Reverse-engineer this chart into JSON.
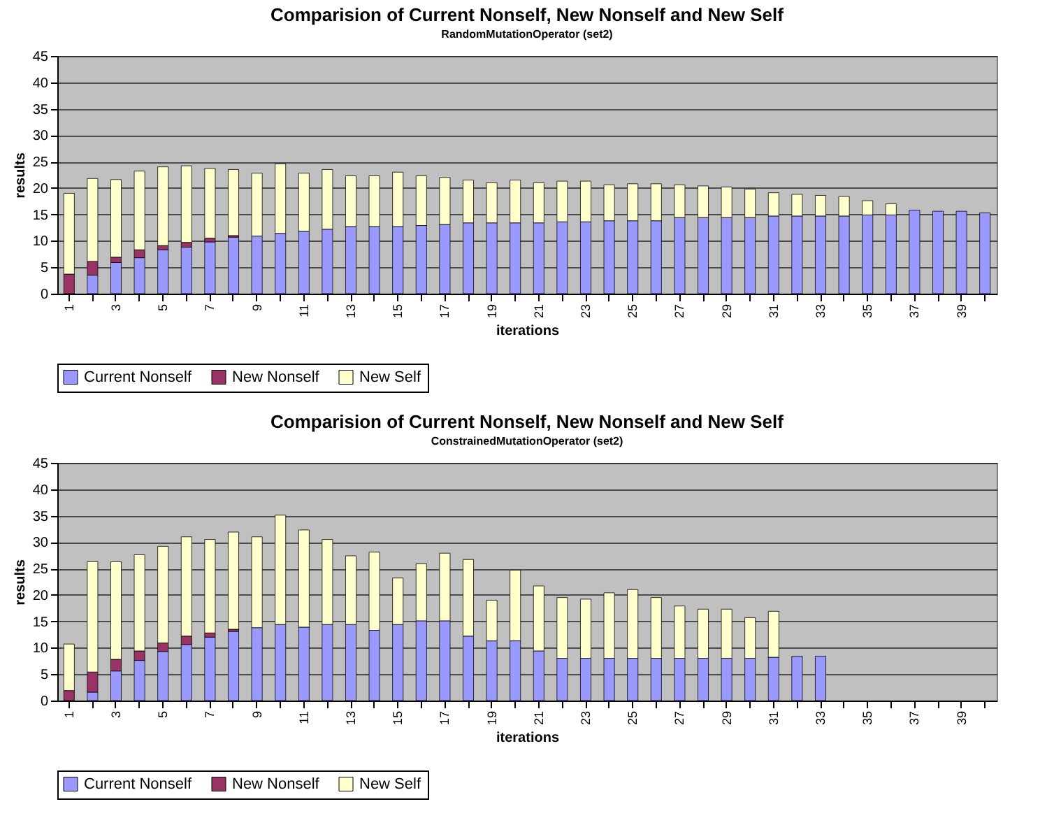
{
  "chart_data": [
    {
      "type": "bar",
      "stacked": true,
      "title": "Comparision of Current Nonself, New Nonself and New Self",
      "subtitle": "RandomMutationOperator (set2)",
      "xlabel": "iterations",
      "ylabel": "results",
      "legend": "bottom",
      "grid": "y",
      "ylim": [
        0,
        45
      ],
      "yticks": [
        0,
        5,
        10,
        15,
        20,
        25,
        30,
        35,
        40,
        45
      ],
      "categories": [
        "1",
        null,
        "3",
        null,
        "5",
        null,
        "7",
        null,
        "9",
        null,
        "11",
        null,
        "13",
        null,
        "15",
        null,
        "17",
        null,
        "19",
        null,
        "21",
        null,
        "23",
        null,
        "25",
        null,
        "27",
        null,
        "29",
        null,
        "31",
        null,
        "33",
        null,
        "35",
        null,
        "37",
        null,
        "39",
        null
      ],
      "series": [
        {
          "name": "Current Nonself",
          "color": "#9999ff",
          "values": [
            null,
            3.5,
            5.9,
            6.8,
            8.3,
            8.8,
            9.8,
            10.7,
            10.9,
            11.4,
            11.8,
            12.2,
            12.7,
            12.7,
            12.7,
            12.9,
            13.1,
            13.4,
            13.4,
            13.4,
            13.4,
            13.6,
            13.6,
            13.8,
            13.8,
            13.8,
            14.4,
            14.4,
            14.4,
            14.4,
            14.7,
            14.7,
            14.7,
            14.7,
            14.9,
            14.9,
            15.8,
            15.6,
            15.6,
            15.3
          ]
        },
        {
          "name": "New Nonself",
          "color": "#993366",
          "values": [
            3.7,
            2.6,
            1.0,
            1.5,
            0.8,
            0.9,
            0.7,
            0.3,
            null,
            null,
            null,
            null,
            null,
            null,
            null,
            null,
            null,
            null,
            null,
            null,
            null,
            null,
            null,
            null,
            null,
            null,
            null,
            null,
            null,
            null,
            null,
            null,
            null,
            null,
            null,
            null,
            null,
            null,
            null,
            null
          ]
        },
        {
          "name": "New Self",
          "color": "#ffffcc",
          "values": [
            15.3,
            15.7,
            14.7,
            14.9,
            14.9,
            14.5,
            13.2,
            12.5,
            11.9,
            13.2,
            11.0,
            11.3,
            9.6,
            9.6,
            10.3,
            9.4,
            8.9,
            8.1,
            7.6,
            8.1,
            7.6,
            7.7,
            7.7,
            6.8,
            7.0,
            7.0,
            6.2,
            6.0,
            5.8,
            5.4,
            4.4,
            4.1,
            3.9,
            3.7,
            2.7,
            2.1,
            null,
            null,
            null,
            null
          ]
        }
      ]
    },
    {
      "type": "bar",
      "stacked": true,
      "title": "Comparision of Current Nonself, New Nonself and New Self",
      "subtitle": "ConstrainedMutationOperator (set2)",
      "xlabel": "iterations",
      "ylabel": "results",
      "legend": "bottom",
      "grid": "y",
      "ylim": [
        0,
        45
      ],
      "yticks": [
        0,
        5,
        10,
        15,
        20,
        25,
        30,
        35,
        40,
        45
      ],
      "categories": [
        "1",
        null,
        "3",
        null,
        "5",
        null,
        "7",
        null,
        "9",
        null,
        "11",
        null,
        "13",
        null,
        "15",
        null,
        "17",
        null,
        "19",
        null,
        "21",
        null,
        "23",
        null,
        "25",
        null,
        "27",
        null,
        "29",
        null,
        "31",
        null,
        "33",
        null,
        "35",
        null,
        "37",
        null,
        "39",
        null
      ],
      "series": [
        {
          "name": "Current Nonself",
          "color": "#9999ff",
          "values": [
            null,
            1.6,
            5.6,
            7.6,
            9.3,
            10.6,
            12.0,
            13.1,
            13.8,
            14.4,
            13.9,
            14.4,
            14.4,
            13.3,
            14.4,
            15.1,
            15.1,
            12.2,
            11.3,
            11.3,
            9.4,
            8.0,
            8.0,
            8.0,
            8.0,
            8.0,
            8.0,
            8.0,
            8.0,
            8.0,
            8.2,
            8.4,
            8.4,
            null,
            null,
            null,
            null,
            null,
            null,
            null
          ]
        },
        {
          "name": "New Nonself",
          "color": "#993366",
          "values": [
            1.9,
            3.8,
            2.2,
            1.8,
            1.6,
            1.6,
            0.8,
            0.4,
            null,
            null,
            null,
            null,
            null,
            null,
            null,
            null,
            null,
            null,
            null,
            null,
            null,
            null,
            null,
            null,
            null,
            null,
            null,
            null,
            null,
            null,
            null,
            null,
            null,
            null,
            null,
            null,
            null,
            null,
            null,
            null
          ]
        },
        {
          "name": "New Self",
          "color": "#ffffcc",
          "values": [
            8.8,
            20.9,
            18.5,
            18.2,
            18.3,
            18.8,
            17.7,
            18.4,
            17.2,
            20.7,
            18.4,
            16.1,
            13.0,
            14.8,
            8.8,
            10.8,
            12.8,
            14.5,
            7.7,
            13.4,
            12.3,
            11.5,
            11.2,
            12.4,
            13.0,
            11.5,
            9.9,
            9.3,
            9.3,
            7.7,
            8.7,
            null,
            null,
            null,
            null,
            null,
            null,
            null,
            null,
            null
          ]
        }
      ]
    }
  ]
}
